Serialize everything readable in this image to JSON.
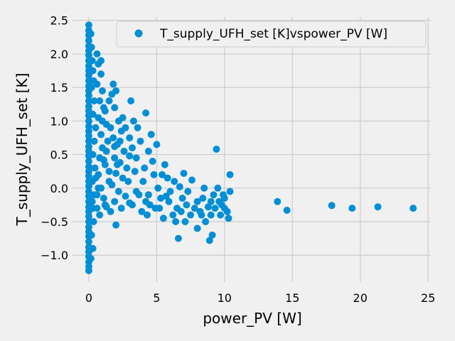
{
  "chart_data": {
    "type": "scatter",
    "xlabel": "power_PV [W]",
    "ylabel": "T_supply_UFH_set [K]",
    "xlim": [
      -1.2,
      25.2
    ],
    "ylim": [
      -1.4,
      2.55
    ],
    "xticks": [
      0,
      5,
      10,
      15,
      20,
      25
    ],
    "yticks": [
      -1.0,
      -0.5,
      0.0,
      0.5,
      1.0,
      1.5,
      2.0,
      2.5
    ],
    "xtick_labels": [
      "0",
      "5",
      "10",
      "15",
      "20",
      "25"
    ],
    "ytick_labels": [
      "−1.0",
      "−0.5",
      "0.0",
      "0.5",
      "1.0",
      "1.5",
      "2.0",
      "2.5"
    ],
    "grid": true,
    "legend_position": "top-right",
    "series": [
      {
        "name": "T_supply_UFH_set [K]vspower_PV [W]",
        "color": "#008fd5",
        "points": [
          [
            0,
            2.43
          ],
          [
            0,
            2.35
          ],
          [
            0,
            2.28
          ],
          [
            0,
            2.2
          ],
          [
            0,
            2.12
          ],
          [
            0,
            2.05
          ],
          [
            0,
            1.98
          ],
          [
            0,
            1.9
          ],
          [
            0,
            1.82
          ],
          [
            0,
            1.75
          ],
          [
            0,
            1.68
          ],
          [
            0,
            1.6
          ],
          [
            0,
            1.52
          ],
          [
            0,
            1.45
          ],
          [
            0,
            1.38
          ],
          [
            0,
            1.3
          ],
          [
            0,
            1.22
          ],
          [
            0,
            1.15
          ],
          [
            0,
            1.08
          ],
          [
            0,
            1.0
          ],
          [
            0,
            0.92
          ],
          [
            0,
            0.85
          ],
          [
            0,
            0.78
          ],
          [
            0,
            0.7
          ],
          [
            0,
            0.62
          ],
          [
            0,
            0.55
          ],
          [
            0,
            0.48
          ],
          [
            0,
            0.4
          ],
          [
            0,
            0.32
          ],
          [
            0,
            0.25
          ],
          [
            0,
            0.18
          ],
          [
            0,
            0.1
          ],
          [
            0,
            0.03
          ],
          [
            0,
            -0.05
          ],
          [
            0,
            -0.12
          ],
          [
            0,
            -0.2
          ],
          [
            0,
            -0.28
          ],
          [
            0,
            -0.35
          ],
          [
            0,
            -0.42
          ],
          [
            0,
            -0.5
          ],
          [
            0,
            -0.58
          ],
          [
            0,
            -0.65
          ],
          [
            0,
            -0.72
          ],
          [
            0,
            -0.8
          ],
          [
            0,
            -0.88
          ],
          [
            0,
            -0.95
          ],
          [
            0,
            -1.02
          ],
          [
            0,
            -1.1
          ],
          [
            0,
            -1.17
          ],
          [
            0,
            -1.23
          ],
          [
            0.15,
            2.3
          ],
          [
            0.2,
            2.1
          ],
          [
            0.25,
            1.9
          ],
          [
            0.3,
            1.75
          ],
          [
            0.35,
            1.6
          ],
          [
            0.2,
            1.5
          ],
          [
            0.4,
            1.3
          ],
          [
            0.3,
            1.1
          ],
          [
            0.5,
            0.9
          ],
          [
            0.4,
            0.7
          ],
          [
            0.3,
            0.5
          ],
          [
            0.45,
            0.3
          ],
          [
            0.25,
            0.1
          ],
          [
            0.4,
            -0.1
          ],
          [
            0.3,
            -0.3
          ],
          [
            0.35,
            -0.5
          ],
          [
            0.2,
            -0.7
          ],
          [
            0.3,
            -0.9
          ],
          [
            0.15,
            -1.05
          ],
          [
            0.25,
            -0.2
          ],
          [
            0.6,
            2.0
          ],
          [
            0.7,
            1.85
          ],
          [
            0.9,
            1.7
          ],
          [
            0.6,
            1.55
          ],
          [
            1.0,
            1.45
          ],
          [
            0.8,
            1.3
          ],
          [
            1.1,
            1.2
          ],
          [
            0.7,
            1.05
          ],
          [
            1.3,
            0.95
          ],
          [
            0.9,
            0.8
          ],
          [
            1.4,
            0.7
          ],
          [
            1.0,
            0.6
          ],
          [
            0.8,
            0.45
          ],
          [
            1.2,
            0.35
          ],
          [
            0.7,
            0.2
          ],
          [
            1.5,
            0.1
          ],
          [
            0.9,
            0.0
          ],
          [
            1.1,
            -0.15
          ],
          [
            0.6,
            -0.3
          ],
          [
            1.3,
            -0.28
          ],
          [
            0.8,
            -0.4
          ],
          [
            1.6,
            -0.35
          ],
          [
            1.2,
            -0.25
          ],
          [
            2.0,
            -0.55
          ],
          [
            0.9,
            1.9
          ],
          [
            1.2,
            1.15
          ],
          [
            1.7,
            1.4
          ],
          [
            1.5,
            1.3
          ],
          [
            1.8,
            1.55
          ],
          [
            2.0,
            1.45
          ],
          [
            1.9,
            1.2
          ],
          [
            2.2,
            1.0
          ],
          [
            1.6,
            0.9
          ],
          [
            2.4,
            0.85
          ],
          [
            1.8,
            0.75
          ],
          [
            2.1,
            0.65
          ],
          [
            2.6,
            0.55
          ],
          [
            1.9,
            0.45
          ],
          [
            2.3,
            0.38
          ],
          [
            2.8,
            0.3
          ],
          [
            2.0,
            0.22
          ],
          [
            2.5,
            0.15
          ],
          [
            1.7,
            0.05
          ],
          [
            2.2,
            -0.05
          ],
          [
            2.7,
            -0.12
          ],
          [
            3.0,
            -0.22
          ],
          [
            2.4,
            -0.3
          ],
          [
            1.9,
            -0.2
          ],
          [
            2.9,
            0.1
          ],
          [
            3.2,
            0.6
          ],
          [
            3.5,
            0.45
          ],
          [
            3.0,
            0.75
          ],
          [
            3.3,
            1.0
          ],
          [
            3.1,
            1.3
          ],
          [
            3.6,
            0.9
          ],
          [
            3.8,
            0.7
          ],
          [
            3.4,
            0.25
          ],
          [
            4.0,
            0.1
          ],
          [
            3.7,
            -0.1
          ],
          [
            4.2,
            -0.2
          ],
          [
            3.9,
            -0.35
          ],
          [
            4.3,
            -0.4
          ],
          [
            4.5,
            -0.25
          ],
          [
            4.1,
            0.3
          ],
          [
            4.4,
            0.55
          ],
          [
            4.7,
            0.4
          ],
          [
            4.2,
            1.12
          ],
          [
            4.6,
            0.8
          ],
          [
            5.0,
            0.65
          ],
          [
            4.8,
            0.2
          ],
          [
            5.1,
            0.0
          ],
          [
            5.3,
            -0.15
          ],
          [
            4.9,
            -0.3
          ],
          [
            5.5,
            -0.45
          ],
          [
            5.2,
            -0.3
          ],
          [
            5.6,
            0.35
          ],
          [
            5.8,
            0.15
          ],
          [
            5.4,
            0.2
          ],
          [
            6.0,
            -0.05
          ],
          [
            5.9,
            -0.2
          ],
          [
            6.2,
            -0.4
          ],
          [
            6.5,
            -0.3
          ],
          [
            6.3,
            0.1
          ],
          [
            6.7,
            0.02
          ],
          [
            6.4,
            -0.5
          ],
          [
            6.6,
            -0.75
          ],
          [
            6.9,
            -0.15
          ],
          [
            7.2,
            -0.25
          ],
          [
            7.0,
            0.22
          ],
          [
            7.5,
            -0.4
          ],
          [
            7.3,
            -0.05
          ],
          [
            7.8,
            -0.3
          ],
          [
            8.0,
            -0.2
          ],
          [
            7.6,
            0.12
          ],
          [
            8.2,
            -0.35
          ],
          [
            8.4,
            -0.15
          ],
          [
            8.0,
            -0.6
          ],
          [
            8.6,
            -0.5
          ],
          [
            8.8,
            -0.28
          ],
          [
            8.5,
            0.0
          ],
          [
            9.0,
            -0.2
          ],
          [
            9.2,
            -0.1
          ],
          [
            9.0,
            -0.4
          ],
          [
            9.1,
            -0.7
          ],
          [
            8.9,
            -0.78
          ],
          [
            9.4,
            0.58
          ],
          [
            9.3,
            -0.3
          ],
          [
            9.6,
            -0.2
          ],
          [
            9.5,
            0.0
          ],
          [
            9.8,
            -0.25
          ],
          [
            9.7,
            -0.4
          ],
          [
            10.0,
            -0.15
          ],
          [
            10.2,
            -0.35
          ],
          [
            10.4,
            0.2
          ],
          [
            10.4,
            -0.05
          ],
          [
            10.3,
            -0.45
          ],
          [
            10.0,
            -0.3
          ],
          [
            9.9,
            -0.1
          ],
          [
            13.9,
            -0.2
          ],
          [
            14.6,
            -0.33
          ],
          [
            17.9,
            -0.26
          ],
          [
            19.4,
            -0.3
          ],
          [
            21.3,
            -0.28
          ],
          [
            23.9,
            -0.3
          ],
          [
            1.0,
            1.0
          ],
          [
            1.3,
            0.55
          ],
          [
            0.7,
            0.0
          ],
          [
            1.5,
            0.25
          ],
          [
            2.7,
            0.9
          ],
          [
            2.5,
            1.05
          ],
          [
            3.2,
            -0.25
          ],
          [
            6.8,
            -0.35
          ],
          [
            8.3,
            -0.4
          ],
          [
            7.1,
            -0.5
          ],
          [
            5.7,
            -0.12
          ],
          [
            4.4,
            -0.1
          ],
          [
            3.5,
            -0.05
          ],
          [
            2.1,
            0.35
          ],
          [
            1.1,
            0.42
          ],
          [
            0.5,
            0.15
          ],
          [
            0.6,
            -0.1
          ],
          [
            1.9,
            0.62
          ],
          [
            2.3,
            0.7
          ],
          [
            3.0,
            0.48
          ]
        ]
      }
    ]
  }
}
